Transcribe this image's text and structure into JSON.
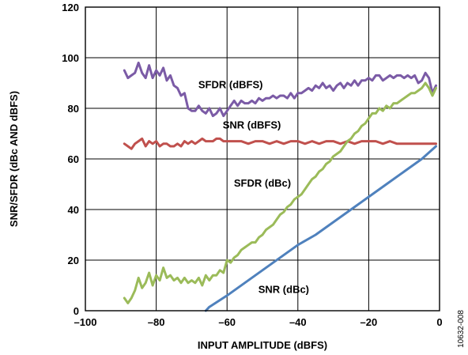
{
  "chart_data": {
    "type": "line",
    "xlabel": "INPUT AMPLITUDE (dBFS)",
    "ylabel": "SNR/SFDR (dBc AND dBFS)",
    "xlim": [
      -100,
      0
    ],
    "ylim": [
      0,
      120
    ],
    "x_ticks": [
      "–100",
      "–80",
      "–60",
      "–40",
      "–20",
      "0"
    ],
    "x_tick_values": [
      -100,
      -80,
      -60,
      -40,
      -20,
      0
    ],
    "y_ticks": [
      "0",
      "20",
      "40",
      "60",
      "80",
      "100",
      "120"
    ],
    "y_tick_values": [
      0,
      20,
      40,
      60,
      80,
      100,
      120
    ],
    "grid": true,
    "figure_id": "10632-008",
    "series": [
      {
        "name": "SFDR (dBFS)",
        "color": "#7b5ba6",
        "label_at": [
          -59,
          88
        ],
        "x": [
          -89,
          -88,
          -87,
          -86,
          -85,
          -84,
          -83,
          -82,
          -81,
          -80,
          -79,
          -78,
          -77,
          -76,
          -75,
          -74,
          -73,
          -72,
          -71,
          -70,
          -69,
          -68,
          -67,
          -66,
          -65,
          -64,
          -63,
          -62,
          -61,
          -60,
          -59,
          -58,
          -57,
          -56,
          -55,
          -54,
          -53,
          -52,
          -51,
          -50,
          -49,
          -48,
          -47,
          -46,
          -45,
          -44,
          -43,
          -42,
          -41,
          -40,
          -39,
          -38,
          -37,
          -36,
          -35,
          -34,
          -33,
          -32,
          -31,
          -30,
          -29,
          -28,
          -27,
          -26,
          -25,
          -24,
          -23,
          -22,
          -21,
          -20,
          -19,
          -18,
          -17,
          -16,
          -15,
          -14,
          -13,
          -12,
          -11,
          -10,
          -9,
          -8,
          -7,
          -6,
          -5,
          -4,
          -3,
          -2,
          -1
        ],
        "values": [
          95,
          92,
          93,
          94,
          98,
          94,
          92,
          97,
          92,
          95,
          93,
          96,
          91,
          93,
          89,
          88,
          85,
          86,
          80,
          79,
          79,
          81,
          79,
          78,
          80,
          77,
          78,
          80,
          77,
          79,
          81,
          83,
          81,
          83,
          82,
          82,
          83,
          82,
          84,
          83,
          84,
          84,
          85,
          84,
          85,
          85,
          84,
          86,
          84,
          86,
          86,
          87,
          88,
          87,
          89,
          88,
          90,
          88,
          89,
          87,
          89,
          90,
          88,
          90,
          89,
          91,
          89,
          91,
          91,
          92,
          91,
          93,
          93,
          91,
          92,
          93,
          92,
          93,
          93,
          92,
          93,
          92,
          93,
          90,
          91,
          94,
          92,
          86,
          89
        ]
      },
      {
        "name": "SNR (dBFS)",
        "color": "#c0504d",
        "label_at": [
          -53,
          72
        ],
        "x": [
          -89,
          -88,
          -87,
          -86,
          -85,
          -84,
          -83,
          -82,
          -81,
          -80,
          -79,
          -78,
          -77,
          -76,
          -75,
          -74,
          -73,
          -72,
          -71,
          -70,
          -69,
          -68,
          -67,
          -66,
          -65,
          -64,
          -63,
          -62,
          -61,
          -60,
          -58,
          -56,
          -54,
          -52,
          -50,
          -48,
          -46,
          -44,
          -42,
          -40,
          -38,
          -36,
          -34,
          -32,
          -30,
          -28,
          -26,
          -24,
          -22,
          -20,
          -18,
          -16,
          -14,
          -12,
          -10,
          -8,
          -6,
          -4,
          -2,
          -1
        ],
        "values": [
          66,
          65,
          64,
          66,
          67,
          68,
          65,
          67,
          66,
          67,
          65,
          66,
          66,
          65,
          65,
          66,
          65,
          67,
          66,
          67,
          66,
          67,
          68,
          67,
          67,
          67,
          68,
          68,
          67,
          67,
          67,
          67,
          66,
          67,
          67,
          66,
          67,
          66,
          67,
          67,
          66,
          67,
          66,
          67,
          67,
          66,
          67,
          66,
          67,
          67,
          67,
          66,
          67,
          66,
          66,
          66,
          66,
          66,
          66,
          66
        ]
      },
      {
        "name": "SFDR (dBc)",
        "color": "#9bbb59",
        "label_at": [
          -50,
          49
        ],
        "x": [
          -89,
          -88,
          -87,
          -86,
          -85,
          -84,
          -83,
          -82,
          -81,
          -80,
          -79,
          -78,
          -77,
          -76,
          -75,
          -74,
          -73,
          -72,
          -71,
          -70,
          -69,
          -68,
          -67,
          -66,
          -65,
          -64,
          -63,
          -62,
          -61,
          -60,
          -59,
          -58,
          -57,
          -56,
          -55,
          -54,
          -53,
          -52,
          -51,
          -50,
          -49,
          -48,
          -47,
          -46,
          -45,
          -44,
          -43,
          -42,
          -41,
          -40,
          -39,
          -38,
          -37,
          -36,
          -35,
          -34,
          -33,
          -32,
          -31,
          -30,
          -29,
          -28,
          -27,
          -26,
          -25,
          -24,
          -23,
          -22,
          -21,
          -20,
          -19,
          -18,
          -17,
          -16,
          -15,
          -14,
          -13,
          -12,
          -11,
          -10,
          -9,
          -8,
          -7,
          -6,
          -5,
          -4,
          -3,
          -2,
          -1
        ],
        "values": [
          5,
          3,
          5,
          8,
          13,
          9,
          11,
          15,
          10,
          14,
          12,
          17,
          13,
          14,
          12,
          13,
          11,
          13,
          11,
          12,
          11,
          13,
          10,
          14,
          12,
          14,
          14,
          16,
          15,
          20,
          19,
          21,
          22,
          24,
          25,
          26,
          27,
          27,
          29,
          30,
          32,
          33,
          34,
          36,
          38,
          39,
          41,
          42,
          44,
          45,
          46,
          48,
          50,
          52,
          53,
          55,
          56,
          58,
          59,
          61,
          62,
          63,
          65,
          67,
          68,
          70,
          71,
          73,
          74,
          76,
          78,
          78,
          80,
          79,
          81,
          80,
          82,
          82,
          83,
          84,
          85,
          86,
          86,
          87,
          88,
          90,
          88,
          85,
          88
        ]
      },
      {
        "name": "SNR (dBc)",
        "color": "#4f81bd",
        "label_at": [
          -44,
          7
        ],
        "x": [
          -66,
          -65,
          -60,
          -55,
          -50,
          -45,
          -40,
          -35,
          -30,
          -25,
          -20,
          -15,
          -10,
          -5,
          -1
        ],
        "values": [
          0,
          1.5,
          6,
          11,
          16,
          21,
          26,
          30,
          35,
          40,
          45,
          50,
          55,
          60,
          65
        ]
      }
    ]
  }
}
